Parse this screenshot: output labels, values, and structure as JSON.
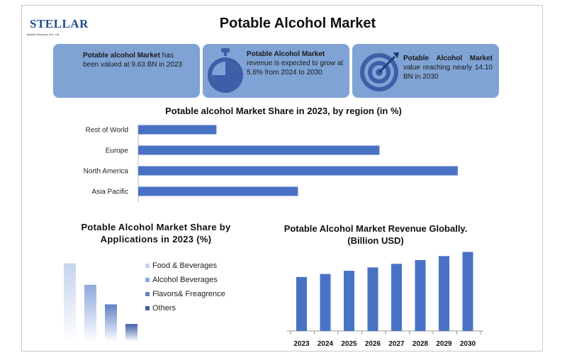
{
  "brand": {
    "name": "STELLAR",
    "tagline": "Market Research Pvt. Ltd."
  },
  "title": "Potable Alcohol Market",
  "cards": [
    {
      "bold": "Potable alcohol Market",
      "text": " has been valued at 9.63 BN in 2023"
    },
    {
      "bold": "Potable Alcohol Market",
      "text": " revenue is expected to grow at 5.6% from 2024 to 2030"
    },
    {
      "bold": "Potable Alcohol Market",
      "text": " value reaching nearly 14.10 BN in 2030"
    }
  ],
  "icons": [
    "stopwatch-icon",
    "target-icon"
  ],
  "colors": {
    "bar": "#4a72c4",
    "card": "#7fa3d4",
    "accent": "#1f4e8f"
  },
  "chart_data": [
    {
      "type": "bar",
      "orientation": "horizontal",
      "title": "Potable alcohol Market Share in 2023, by region (in %)",
      "categories": [
        "Rest of World",
        "Europe",
        "North America",
        "Asia Pacific"
      ],
      "values": [
        12,
        37,
        49,
        24.5
      ],
      "xlim": [
        0,
        50
      ]
    },
    {
      "type": "bar",
      "title": "Potable Alcohol  Market Share by Applications in 2023 (%)",
      "categories": [
        "Food & Beverages",
        "Alcohol Beverages",
        "Flavors& Freagrence",
        "Others"
      ],
      "values": [
        40,
        29,
        19,
        9
      ],
      "ylim": [
        0,
        42
      ],
      "colors": [
        "#c5d3ec",
        "#8ea8dc",
        "#5f81c6",
        "#3d5fa8"
      ],
      "legend": "right"
    },
    {
      "type": "bar",
      "title": "Potable Alcohol   Market Revenue Globally.(Billion USD)",
      "categories": [
        "2023",
        "2024",
        "2025",
        "2026",
        "2027",
        "2028",
        "2029",
        "2030"
      ],
      "values": [
        9.63,
        10.17,
        10.74,
        11.34,
        11.98,
        12.65,
        13.36,
        14.1
      ],
      "ylim": [
        0,
        15.3
      ]
    }
  ]
}
